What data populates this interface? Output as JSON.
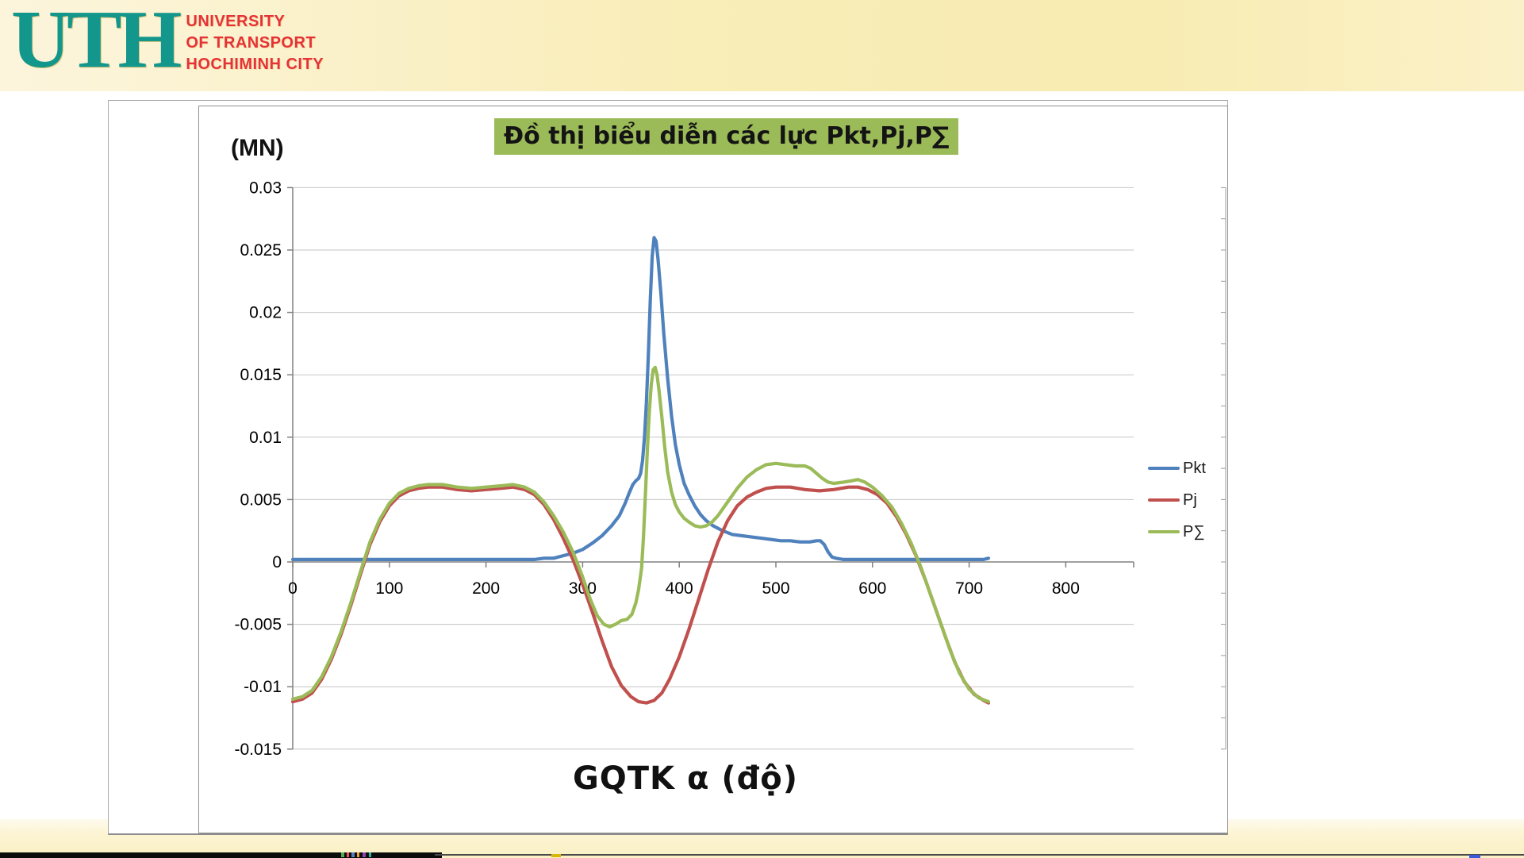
{
  "header": {
    "logo_acronym": "UTH",
    "logo_lines": [
      "UNIVERSITY",
      "OF TRANSPORT",
      "HOCHIMINH CITY"
    ],
    "logo_teal": "#13968B",
    "logo_red": "#E53238"
  },
  "chart_data": {
    "type": "line",
    "title": "Đồ thị biểu diễn các lực Pkt,Pj,P∑",
    "title_highlight_color": "#9BBB59",
    "ylabel": "(MN)",
    "xlabel": "GQTK α (độ)",
    "xlim": [
      0,
      875
    ],
    "ylim": [
      -0.015,
      0.03
    ],
    "grid": "horizontal-only",
    "legend_position": "right",
    "x_tick_labels": [
      "0",
      "100",
      "200",
      "300",
      "400",
      "500",
      "600",
      "700",
      "800"
    ],
    "y_tick_labels": [
      "0.03",
      "0.025",
      "0.02",
      "0.015",
      "0.01",
      "0.005",
      "0",
      "-0.005",
      "-0.01",
      "-0.015"
    ],
    "series": [
      {
        "name": "Pkt",
        "color": "#4F81BD",
        "points": [
          [
            0,
            0.0002
          ],
          [
            40,
            0.0002
          ],
          [
            80,
            0.0002
          ],
          [
            120,
            0.0002
          ],
          [
            160,
            0.0002
          ],
          [
            200,
            0.0002
          ],
          [
            230,
            0.0002
          ],
          [
            250,
            0.0002
          ],
          [
            260,
            0.0003
          ],
          [
            270,
            0.0003
          ],
          [
            280,
            0.0005
          ],
          [
            290,
            0.0007
          ],
          [
            300,
            0.001
          ],
          [
            310,
            0.0015
          ],
          [
            320,
            0.0021
          ],
          [
            330,
            0.0029
          ],
          [
            338,
            0.0037
          ],
          [
            344,
            0.0047
          ],
          [
            348,
            0.0055
          ],
          [
            352,
            0.0062
          ],
          [
            355,
            0.0065
          ],
          [
            358,
            0.0067
          ],
          [
            360,
            0.0071
          ],
          [
            362,
            0.0081
          ],
          [
            364,
            0.01
          ],
          [
            366,
            0.0128
          ],
          [
            368,
            0.0165
          ],
          [
            370,
            0.021
          ],
          [
            372,
            0.0245
          ],
          [
            374,
            0.026
          ],
          [
            376,
            0.0257
          ],
          [
            378,
            0.0243
          ],
          [
            381,
            0.0215
          ],
          [
            384,
            0.0183
          ],
          [
            388,
            0.0147
          ],
          [
            392,
            0.0117
          ],
          [
            396,
            0.0094
          ],
          [
            400,
            0.0078
          ],
          [
            405,
            0.0063
          ],
          [
            410,
            0.0054
          ],
          [
            416,
            0.0045
          ],
          [
            422,
            0.0038
          ],
          [
            428,
            0.0033
          ],
          [
            435,
            0.0029
          ],
          [
            445,
            0.0025
          ],
          [
            455,
            0.0022
          ],
          [
            465,
            0.0021
          ],
          [
            475,
            0.002
          ],
          [
            485,
            0.0019
          ],
          [
            495,
            0.0018
          ],
          [
            505,
            0.0017
          ],
          [
            515,
            0.0017
          ],
          [
            525,
            0.0016
          ],
          [
            535,
            0.0016
          ],
          [
            542,
            0.0017
          ],
          [
            546,
            0.0017
          ],
          [
            550,
            0.0014
          ],
          [
            554,
            0.0008
          ],
          [
            558,
            0.0004
          ],
          [
            562,
            0.0003
          ],
          [
            570,
            0.0002
          ],
          [
            590,
            0.0002
          ],
          [
            610,
            0.0002
          ],
          [
            630,
            0.0002
          ],
          [
            650,
            0.0002
          ],
          [
            670,
            0.0002
          ],
          [
            690,
            0.0002
          ],
          [
            705,
            0.0002
          ],
          [
            715,
            0.0002
          ],
          [
            720,
            0.0003
          ]
        ]
      },
      {
        "name": "Pj",
        "color": "#C0504D",
        "points": [
          [
            0,
            -0.0112
          ],
          [
            10,
            -0.011
          ],
          [
            20,
            -0.0105
          ],
          [
            30,
            -0.0094
          ],
          [
            40,
            -0.0078
          ],
          [
            50,
            -0.0058
          ],
          [
            60,
            -0.0035
          ],
          [
            70,
            -0.001
          ],
          [
            80,
            0.0014
          ],
          [
            90,
            0.0032
          ],
          [
            100,
            0.0045
          ],
          [
            110,
            0.0053
          ],
          [
            120,
            0.0057
          ],
          [
            130,
            0.0059
          ],
          [
            140,
            0.006
          ],
          [
            155,
            0.006
          ],
          [
            170,
            0.0058
          ],
          [
            185,
            0.0057
          ],
          [
            200,
            0.0058
          ],
          [
            215,
            0.0059
          ],
          [
            228,
            0.006
          ],
          [
            240,
            0.0058
          ],
          [
            250,
            0.0054
          ],
          [
            260,
            0.0046
          ],
          [
            270,
            0.0034
          ],
          [
            280,
            0.0019
          ],
          [
            290,
            0.0002
          ],
          [
            300,
            -0.0018
          ],
          [
            310,
            -0.004
          ],
          [
            320,
            -0.0063
          ],
          [
            330,
            -0.0084
          ],
          [
            340,
            -0.0099
          ],
          [
            350,
            -0.0108
          ],
          [
            358,
            -0.0112
          ],
          [
            366,
            -0.0113
          ],
          [
            374,
            -0.0111
          ],
          [
            382,
            -0.0105
          ],
          [
            390,
            -0.0094
          ],
          [
            400,
            -0.0076
          ],
          [
            410,
            -0.0054
          ],
          [
            420,
            -0.003
          ],
          [
            430,
            -0.0006
          ],
          [
            440,
            0.0016
          ],
          [
            450,
            0.0033
          ],
          [
            460,
            0.0045
          ],
          [
            470,
            0.0052
          ],
          [
            480,
            0.0056
          ],
          [
            490,
            0.0059
          ],
          [
            500,
            0.006
          ],
          [
            515,
            0.006
          ],
          [
            530,
            0.0058
          ],
          [
            545,
            0.0057
          ],
          [
            560,
            0.0058
          ],
          [
            575,
            0.006
          ],
          [
            585,
            0.006
          ],
          [
            595,
            0.0058
          ],
          [
            605,
            0.0054
          ],
          [
            615,
            0.0047
          ],
          [
            625,
            0.0036
          ],
          [
            635,
            0.0022
          ],
          [
            645,
            0.0005
          ],
          [
            655,
            -0.0015
          ],
          [
            665,
            -0.0037
          ],
          [
            675,
            -0.0059
          ],
          [
            685,
            -0.008
          ],
          [
            695,
            -0.0096
          ],
          [
            705,
            -0.0106
          ],
          [
            715,
            -0.0111
          ],
          [
            720,
            -0.0113
          ]
        ]
      },
      {
        "name": "P∑",
        "color": "#9BBB59",
        "points": [
          [
            0,
            -0.011
          ],
          [
            10,
            -0.0108
          ],
          [
            20,
            -0.0103
          ],
          [
            30,
            -0.0092
          ],
          [
            40,
            -0.0076
          ],
          [
            50,
            -0.0056
          ],
          [
            60,
            -0.0033
          ],
          [
            70,
            -0.0008
          ],
          [
            80,
            0.0016
          ],
          [
            90,
            0.0034
          ],
          [
            100,
            0.0047
          ],
          [
            110,
            0.0055
          ],
          [
            120,
            0.0059
          ],
          [
            130,
            0.0061
          ],
          [
            140,
            0.0062
          ],
          [
            155,
            0.0062
          ],
          [
            170,
            0.006
          ],
          [
            185,
            0.0059
          ],
          [
            200,
            0.006
          ],
          [
            215,
            0.0061
          ],
          [
            228,
            0.0062
          ],
          [
            240,
            0.006
          ],
          [
            250,
            0.0056
          ],
          [
            260,
            0.0048
          ],
          [
            270,
            0.0037
          ],
          [
            280,
            0.0024
          ],
          [
            290,
            0.0008
          ],
          [
            300,
            -0.0012
          ],
          [
            308,
            -0.003
          ],
          [
            315,
            -0.0043
          ],
          [
            322,
            -0.005
          ],
          [
            328,
            -0.0052
          ],
          [
            334,
            -0.005
          ],
          [
            340,
            -0.0047
          ],
          [
            346,
            -0.0046
          ],
          [
            351,
            -0.0042
          ],
          [
            355,
            -0.0033
          ],
          [
            358,
            -0.0022
          ],
          [
            361,
            -0.0005
          ],
          [
            363,
            0.002
          ],
          [
            365,
            0.0055
          ],
          [
            367,
            0.009
          ],
          [
            369,
            0.012
          ],
          [
            371,
            0.0142
          ],
          [
            373,
            0.0154
          ],
          [
            375,
            0.0156
          ],
          [
            377,
            0.015
          ],
          [
            379,
            0.0138
          ],
          [
            382,
            0.0116
          ],
          [
            385,
            0.0092
          ],
          [
            388,
            0.0072
          ],
          [
            392,
            0.0056
          ],
          [
            396,
            0.0046
          ],
          [
            400,
            0.004
          ],
          [
            405,
            0.0035
          ],
          [
            410,
            0.0032
          ],
          [
            416,
            0.0029
          ],
          [
            422,
            0.0028
          ],
          [
            428,
            0.0029
          ],
          [
            434,
            0.0032
          ],
          [
            440,
            0.0037
          ],
          [
            450,
            0.0048
          ],
          [
            460,
            0.0059
          ],
          [
            470,
            0.0068
          ],
          [
            480,
            0.0074
          ],
          [
            490,
            0.0078
          ],
          [
            500,
            0.0079
          ],
          [
            510,
            0.0078
          ],
          [
            520,
            0.0077
          ],
          [
            530,
            0.0077
          ],
          [
            536,
            0.0075
          ],
          [
            542,
            0.0071
          ],
          [
            548,
            0.0067
          ],
          [
            554,
            0.0064
          ],
          [
            560,
            0.0063
          ],
          [
            570,
            0.0064
          ],
          [
            578,
            0.0065
          ],
          [
            585,
            0.0066
          ],
          [
            592,
            0.0064
          ],
          [
            600,
            0.006
          ],
          [
            610,
            0.0053
          ],
          [
            620,
            0.0044
          ],
          [
            630,
            0.0031
          ],
          [
            640,
            0.0015
          ],
          [
            650,
            -0.0004
          ],
          [
            660,
            -0.0026
          ],
          [
            670,
            -0.0048
          ],
          [
            680,
            -0.007
          ],
          [
            690,
            -0.0089
          ],
          [
            700,
            -0.0102
          ],
          [
            710,
            -0.0109
          ],
          [
            720,
            -0.0112
          ]
        ]
      }
    ]
  },
  "bottom_bar": {
    "bar_color": "#0B0B0B",
    "speck_colors": [
      "#4CAF50",
      "#E94F64",
      "#4F81BD",
      "#F0A030",
      "#8E44AD",
      "#2BB3A0"
    ],
    "yellow_mark_color": "#D8B80A",
    "blue_mark_color": "#3B5BD6"
  }
}
